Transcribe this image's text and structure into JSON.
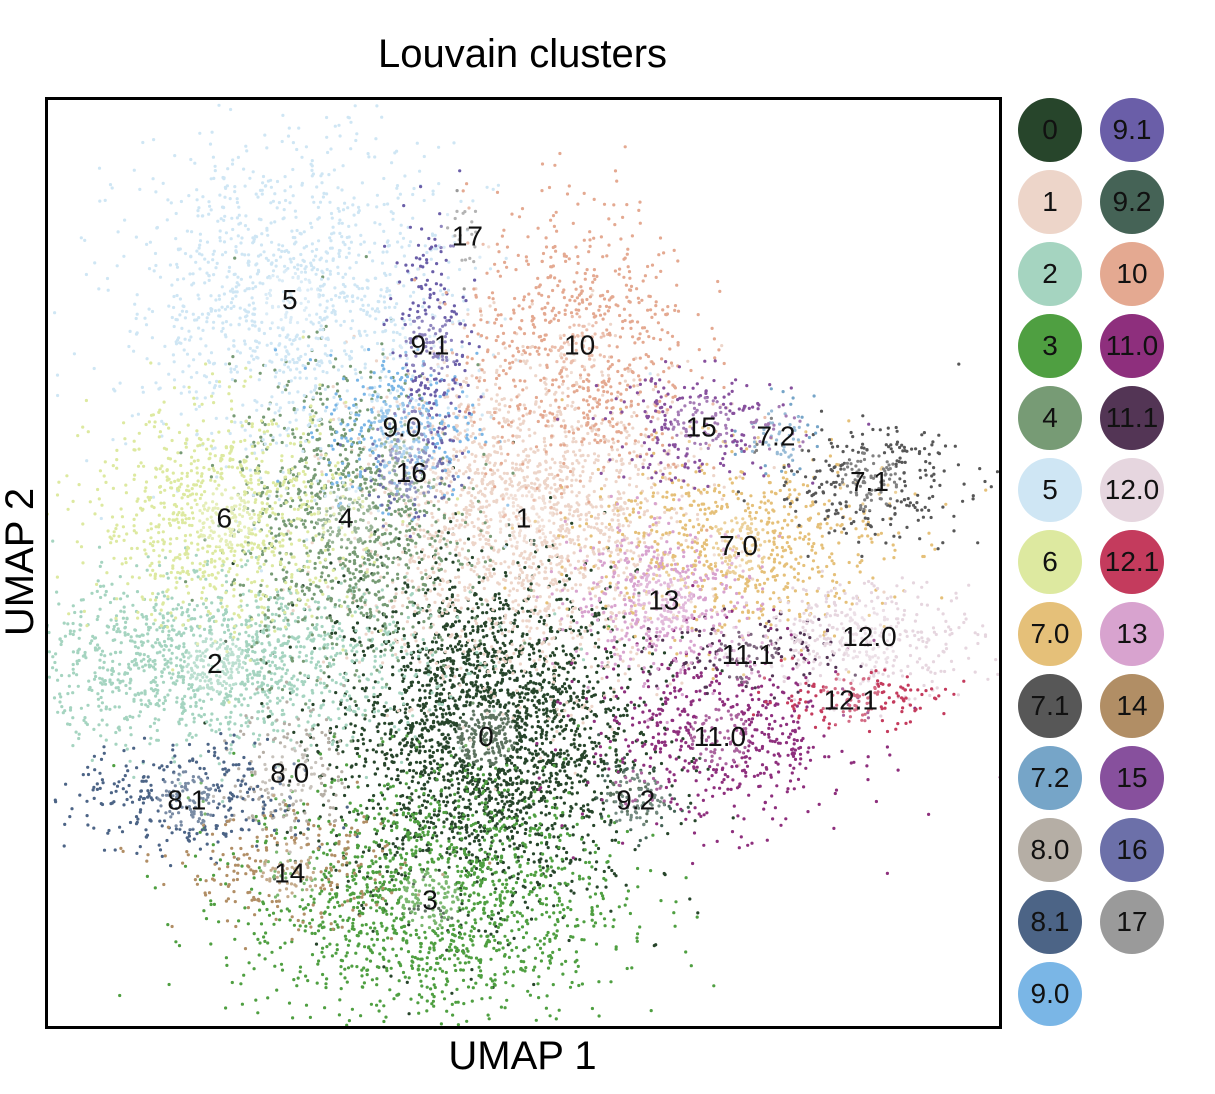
{
  "chart_data": {
    "type": "scatter",
    "title": "Louvain clusters",
    "xlabel": "UMAP 1",
    "ylabel": "UMAP 2",
    "xlim": [
      0,
      100
    ],
    "ylim": [
      0,
      100
    ],
    "grid": false,
    "legend_position": "right",
    "clusters": [
      {
        "name": "0",
        "color": "#27452b",
        "center": [
          46,
          31
        ],
        "spread": [
          8,
          9
        ],
        "count": 2600
      },
      {
        "name": "1",
        "color": "#edd5c9",
        "center": [
          50,
          55
        ],
        "spread": [
          9,
          9
        ],
        "count": 1800
      },
      {
        "name": "2",
        "color": "#a5d4c0",
        "center": [
          17,
          39
        ],
        "spread": [
          11,
          4.5
        ],
        "count": 1400
      },
      {
        "name": "3",
        "color": "#4f9f41",
        "center": [
          40,
          13
        ],
        "spread": [
          10,
          7
        ],
        "count": 1500
      },
      {
        "name": "4",
        "color": "#779b75",
        "center": [
          31,
          55
        ],
        "spread": [
          6,
          8
        ],
        "count": 1000
      },
      {
        "name": "5",
        "color": "#cfe6f4",
        "center": [
          25,
          79
        ],
        "spread": [
          9,
          9
        ],
        "count": 1200
      },
      {
        "name": "6",
        "color": "#dde9a0",
        "center": [
          18,
          55
        ],
        "spread": [
          7,
          6
        ],
        "count": 900
      },
      {
        "name": "7.0",
        "color": "#e5c079",
        "center": [
          73,
          52
        ],
        "spread": [
          8,
          5
        ],
        "count": 700
      },
      {
        "name": "7.1",
        "color": "#575757",
        "center": [
          87,
          59
        ],
        "spread": [
          5,
          3
        ],
        "count": 300
      },
      {
        "name": "7.2",
        "color": "#76a5c8",
        "center": [
          77,
          64
        ],
        "spread": [
          2,
          2
        ],
        "count": 60
      },
      {
        "name": "8.0",
        "color": "#b5aea5",
        "center": [
          25,
          27
        ],
        "spread": [
          3,
          4
        ],
        "count": 180
      },
      {
        "name": "8.1",
        "color": "#4c6486",
        "center": [
          14,
          24
        ],
        "spread": [
          6,
          3
        ],
        "count": 350
      },
      {
        "name": "9.0",
        "color": "#7ab6e6",
        "center": [
          37,
          65
        ],
        "spread": [
          4,
          4
        ],
        "count": 300
      },
      {
        "name": "9.1",
        "color": "#6a5ea8",
        "center": [
          40,
          74
        ],
        "spread": [
          2,
          7
        ],
        "count": 250
      },
      {
        "name": "9.2",
        "color": "#456356",
        "center": [
          62,
          24
        ],
        "spread": [
          2,
          2
        ],
        "count": 90
      },
      {
        "name": "10",
        "color": "#e4a991",
        "center": [
          56,
          74
        ],
        "spread": [
          6,
          8
        ],
        "count": 700
      },
      {
        "name": "11.0",
        "color": "#8e2f7d",
        "center": [
          71,
          31
        ],
        "spread": [
          7,
          5
        ],
        "count": 600
      },
      {
        "name": "11.1",
        "color": "#533555",
        "center": [
          74,
          40
        ],
        "spread": [
          5,
          2
        ],
        "count": 130
      },
      {
        "name": "12.0",
        "color": "#e6d6df",
        "center": [
          87,
          42
        ],
        "spread": [
          6,
          3
        ],
        "count": 380
      },
      {
        "name": "12.1",
        "color": "#c43b5d",
        "center": [
          85,
          35
        ],
        "spread": [
          5,
          1.5
        ],
        "count": 150
      },
      {
        "name": "13",
        "color": "#d8a3cf",
        "center": [
          65,
          46
        ],
        "spread": [
          5,
          4
        ],
        "count": 450
      },
      {
        "name": "14",
        "color": "#b18e65",
        "center": [
          25,
          16
        ],
        "spread": [
          6,
          3
        ],
        "count": 250
      },
      {
        "name": "15",
        "color": "#87509d",
        "center": [
          69,
          65
        ],
        "spread": [
          5,
          3
        ],
        "count": 250
      },
      {
        "name": "16",
        "color": "#6c70a9",
        "center": [
          38,
          60
        ],
        "spread": [
          2.5,
          2.5
        ],
        "count": 100
      },
      {
        "name": "17",
        "color": "#9a9a9a",
        "center": [
          44,
          86
        ],
        "spread": [
          1,
          2
        ],
        "count": 20
      }
    ]
  },
  "legend": {
    "items": [
      {
        "label": "0",
        "color": "#27452b"
      },
      {
        "label": "9.1",
        "color": "#6a5ea8"
      },
      {
        "label": "1",
        "color": "#edd5c9"
      },
      {
        "label": "9.2",
        "color": "#456356"
      },
      {
        "label": "2",
        "color": "#a5d4c0"
      },
      {
        "label": "10",
        "color": "#e4a991"
      },
      {
        "label": "3",
        "color": "#4f9f41"
      },
      {
        "label": "11.0",
        "color": "#8e2f7d"
      },
      {
        "label": "4",
        "color": "#779b75"
      },
      {
        "label": "11.1",
        "color": "#533555"
      },
      {
        "label": "5",
        "color": "#cfe6f4"
      },
      {
        "label": "12.0",
        "color": "#e6d6df"
      },
      {
        "label": "6",
        "color": "#dde9a0"
      },
      {
        "label": "12.1",
        "color": "#c43b5d"
      },
      {
        "label": "7.0",
        "color": "#e5c079"
      },
      {
        "label": "13",
        "color": "#d8a3cf"
      },
      {
        "label": "7.1",
        "color": "#575757"
      },
      {
        "label": "14",
        "color": "#b18e65"
      },
      {
        "label": "7.2",
        "color": "#76a5c8"
      },
      {
        "label": "15",
        "color": "#87509d"
      },
      {
        "label": "8.0",
        "color": "#b5aea5"
      },
      {
        "label": "16",
        "color": "#6c70a9"
      },
      {
        "label": "8.1",
        "color": "#4c6486"
      },
      {
        "label": "17",
        "color": "#9a9a9a"
      },
      {
        "label": "9.0",
        "color": "#7ab6e6"
      }
    ]
  }
}
